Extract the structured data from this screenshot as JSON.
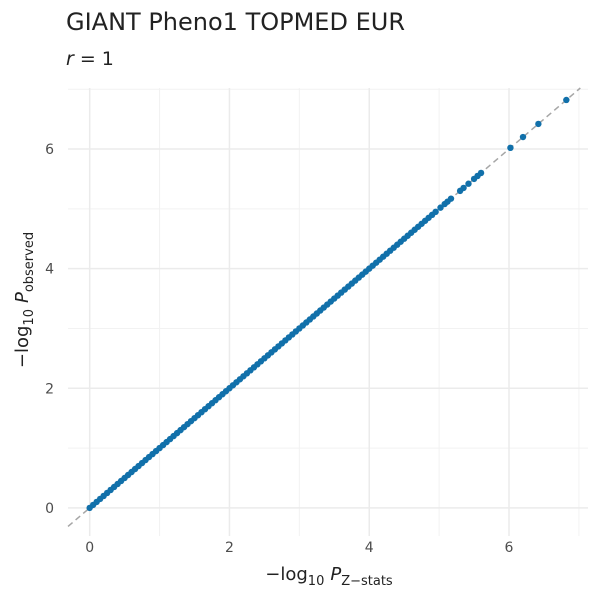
{
  "chart_data": {
    "type": "scatter",
    "title": "GIANT Pheno1 TOPMED EUR",
    "subtitle": [
      "r",
      " = 1"
    ],
    "x_label": [
      "−log",
      "10",
      "P",
      "Z−stats"
    ],
    "y_label": [
      "−log",
      "10",
      "P",
      "observed"
    ],
    "color": "#1170aa",
    "reference_line_color": "#a6a6a6",
    "grid": true,
    "xlim": [
      -0.31,
      7.13
    ],
    "ylim": [
      -0.47,
      7.02
    ],
    "xticks": [
      0,
      2,
      4,
      6
    ],
    "yticks": [
      0,
      2,
      4,
      6
    ],
    "x_minor_grid": [
      1,
      3,
      5,
      7
    ],
    "y_minor_grid": [
      1,
      3,
      5,
      7
    ],
    "x": [
      0,
      0.05,
      0.1,
      0.15,
      0.2,
      0.25,
      0.3,
      0.35,
      0.4,
      0.45,
      0.5,
      0.55,
      0.6,
      0.65,
      0.7,
      0.75,
      0.8,
      0.85,
      0.9,
      0.95,
      1,
      1.05,
      1.1,
      1.15,
      1.2,
      1.25,
      1.3,
      1.35,
      1.4,
      1.45,
      1.5,
      1.55,
      1.6,
      1.65,
      1.7,
      1.75,
      1.8,
      1.85,
      1.9,
      1.95,
      2,
      2.05,
      2.1,
      2.15,
      2.2,
      2.25,
      2.3,
      2.35,
      2.4,
      2.45,
      2.5,
      2.55,
      2.6,
      2.65,
      2.7,
      2.75,
      2.8,
      2.85,
      2.9,
      2.95,
      3,
      3.05,
      3.1,
      3.15,
      3.2,
      3.25,
      3.3,
      3.35,
      3.4,
      3.45,
      3.5,
      3.55,
      3.6,
      3.65,
      3.7,
      3.75,
      3.8,
      3.85,
      3.9,
      3.95,
      4,
      4.05,
      4.1,
      4.15,
      4.2,
      4.25,
      4.3,
      4.35,
      4.4,
      4.45,
      4.5,
      4.55,
      4.6,
      4.65,
      4.7,
      4.75,
      4.8,
      4.85,
      4.9,
      4.95,
      5.02,
      5.08,
      5.12,
      5.17,
      5.3,
      5.35,
      5.42,
      5.5,
      5.55,
      5.6,
      6.02,
      6.2,
      6.42,
      6.82
    ],
    "values": [
      0,
      0.05,
      0.1,
      0.15,
      0.2,
      0.25,
      0.3,
      0.35,
      0.4,
      0.45,
      0.5,
      0.55,
      0.6,
      0.65,
      0.7,
      0.75,
      0.8,
      0.85,
      0.9,
      0.95,
      1,
      1.05,
      1.1,
      1.15,
      1.2,
      1.25,
      1.3,
      1.35,
      1.4,
      1.45,
      1.5,
      1.55,
      1.6,
      1.65,
      1.7,
      1.75,
      1.8,
      1.85,
      1.9,
      1.95,
      2,
      2.05,
      2.1,
      2.15,
      2.2,
      2.25,
      2.3,
      2.35,
      2.4,
      2.45,
      2.5,
      2.55,
      2.6,
      2.65,
      2.7,
      2.75,
      2.8,
      2.85,
      2.9,
      2.95,
      3,
      3.05,
      3.1,
      3.15,
      3.2,
      3.25,
      3.3,
      3.35,
      3.4,
      3.45,
      3.5,
      3.55,
      3.6,
      3.65,
      3.7,
      3.75,
      3.8,
      3.85,
      3.9,
      3.95,
      4,
      4.05,
      4.1,
      4.15,
      4.2,
      4.25,
      4.3,
      4.35,
      4.4,
      4.45,
      4.5,
      4.55,
      4.6,
      4.65,
      4.7,
      4.75,
      4.8,
      4.85,
      4.9,
      4.95,
      5.02,
      5.08,
      5.12,
      5.17,
      5.3,
      5.35,
      5.42,
      5.5,
      5.55,
      5.6,
      6.02,
      6.2,
      6.42,
      6.82
    ]
  }
}
